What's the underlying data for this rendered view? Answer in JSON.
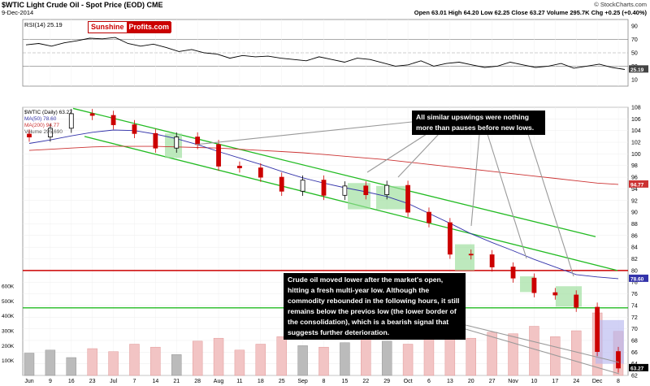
{
  "header": {
    "symbol_line": "$WTIC Light Crude Oil - Spot Price (EOD) CME",
    "date": "9-Dec-2014",
    "source": "© StockCharts.com",
    "ohlc": "Open 63.01  High 64.20  Low 62.25  Close 63.27  Volume 295.7K  Chg +0.25 (+0.40%)"
  },
  "logo": {
    "part1": "Sunshine",
    "part2": "Profits.com"
  },
  "rsi": {
    "label": "RSI(14) 25.19",
    "scale": [
      90,
      70,
      50,
      30,
      10
    ],
    "last_value": "25.19"
  },
  "price": {
    "legend": [
      "$WTIC (Daily) 63.27",
      "MA(50) 78.60",
      "MA(200) 94.77",
      "Volume 295,690"
    ],
    "scale": [
      108,
      106,
      104,
      102,
      100,
      98,
      96,
      94,
      92,
      90,
      88,
      86,
      84,
      82,
      80,
      78,
      76,
      74,
      72,
      70,
      68,
      66,
      64,
      62
    ],
    "last_close": "63.27",
    "ma50_last": "78.60",
    "ma200_last": "94.77",
    "volume_last": "295690"
  },
  "volume_axis": [
    "600K",
    "500K",
    "400K",
    "300K",
    "200K",
    "100K"
  ],
  "x_axis": [
    "Jun",
    "9",
    "16",
    "23",
    "Jul",
    "7",
    "14",
    "21",
    "28",
    "Aug",
    "11",
    "18",
    "25",
    "Sep",
    "8",
    "15",
    "22",
    "29",
    "Oct",
    "6",
    "13",
    "20",
    "27",
    "Nov",
    "10",
    "17",
    "24",
    "Dec",
    "8"
  ],
  "annotations": {
    "top": "All similar upswings were nothing more than pauses before new lows.",
    "bottom": "Crude oil moved lower after the market's open, hitting a fresh multi-year low. Although the commodity rebounded in the following hours, it still remains below the previos low (the lower border of the consolidation), which is a bearish signal that suggests further deterioration."
  },
  "colors": {
    "up": "#000000",
    "down": "#cc0000",
    "channel": "#22bb22",
    "support": "#cc0000",
    "ma50": "#3333aa",
    "ma200": "#cc3333",
    "box": "#99dd99"
  },
  "chart_data": [
    {
      "type": "line",
      "title": "RSI(14) 25.19",
      "ylim": [
        0,
        100
      ],
      "series": [
        {
          "name": "RSI(14)",
          "values": [
            62,
            64,
            60,
            65,
            68,
            72,
            71,
            73,
            64,
            60,
            63,
            58,
            52,
            55,
            50,
            48,
            42,
            46,
            44,
            45,
            42,
            40,
            38,
            44,
            40,
            36,
            42,
            40,
            35,
            30,
            32,
            38,
            30,
            34,
            36,
            32,
            28,
            30,
            36,
            32,
            28,
            30,
            34,
            27,
            30,
            33,
            28,
            25
          ]
        }
      ]
    },
    {
      "type": "line",
      "title": "$WTIC (Daily) 63.27",
      "ylim": [
        62,
        108
      ],
      "x": [
        "Jun",
        "9",
        "16",
        "23",
        "Jul",
        "7",
        "14",
        "21",
        "28",
        "Aug",
        "11",
        "18",
        "25",
        "Sep",
        "8",
        "15",
        "22",
        "29",
        "Oct",
        "6",
        "13",
        "20",
        "27",
        "Nov",
        "10",
        "17",
        "24",
        "Dec",
        "8"
      ],
      "series": [
        {
          "name": "$WTIC",
          "values": [
            102.9,
            104.4,
            106.9,
            106.6,
            105.0,
            103.5,
            101.0,
            102.9,
            101.6,
            97.9,
            97.6,
            96.0,
            93.6,
            95.5,
            92.9,
            94.5,
            93.0,
            94.6,
            90.0,
            88.2,
            82.8,
            82.7,
            80.6,
            78.7,
            76.2,
            75.8,
            73.7,
            66.1,
            63.27
          ]
        },
        {
          "name": "MA(50)",
          "values": [
            101.8,
            102.4,
            103.1,
            103.7,
            104.1,
            104.0,
            103.4,
            102.6,
            101.6,
            100.4,
            99.3,
            98.2,
            97.0,
            95.9,
            95.0,
            94.2,
            93.5,
            92.7,
            91.5,
            89.8,
            88.1,
            86.3,
            84.8,
            83.4,
            81.9,
            80.6,
            79.3,
            78.9,
            78.6
          ]
        },
        {
          "name": "MA(200)",
          "values": [
            100.6,
            100.8,
            101.0,
            101.2,
            101.3,
            101.3,
            101.3,
            101.2,
            101.1,
            101.0,
            100.8,
            100.6,
            100.4,
            100.2,
            99.9,
            99.6,
            99.3,
            99.0,
            98.6,
            98.2,
            97.8,
            97.4,
            97.0,
            96.6,
            96.2,
            95.8,
            95.4,
            95.0,
            94.77
          ]
        }
      ]
    },
    {
      "type": "bar",
      "title": "Volume 295,690",
      "ylim": [
        0,
        600000
      ],
      "values": [
        150000,
        170000,
        120000,
        180000,
        160000,
        210000,
        190000,
        140000,
        230000,
        250000,
        170000,
        210000,
        260000,
        200000,
        190000,
        220000,
        280000,
        230000,
        210000,
        300000,
        310000,
        250000,
        290000,
        280000,
        330000,
        260000,
        300000,
        420000,
        295690
      ]
    }
  ]
}
